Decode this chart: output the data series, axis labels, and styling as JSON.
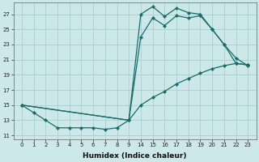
{
  "xlabel": "Humidex (Indice chaleur)",
  "bg_color": "#cce8e8",
  "line_color": "#1a6b6b",
  "grid_color": "#aacfcf",
  "xtick_labels": [
    "0",
    "1",
    "2",
    "3",
    "4",
    "5",
    "6",
    "7",
    "8",
    "9",
    "14",
    "15",
    "16",
    "17",
    "18",
    "19",
    "20",
    "21",
    "22",
    "23"
  ],
  "ytick_labels": [
    "11",
    "13",
    "15",
    "17",
    "19",
    "21",
    "23",
    "25",
    "27"
  ],
  "ytick_vals": [
    11,
    13,
    15,
    17,
    19,
    21,
    23,
    25,
    27
  ],
  "ylim": [
    10.5,
    28.5
  ],
  "line1_xidx": [
    0,
    1,
    2,
    3,
    4,
    5,
    6,
    7,
    8,
    9,
    10,
    11,
    12,
    13,
    14,
    15,
    16,
    17,
    18,
    19
  ],
  "line1_y": [
    15,
    14,
    13,
    12,
    12,
    12,
    12,
    11.8,
    12,
    13,
    27,
    28,
    26.7,
    27.8,
    27.2,
    27,
    25,
    23,
    21.2,
    20.2
  ],
  "line2_xidx": [
    0,
    9,
    10,
    11,
    12,
    13,
    14,
    15,
    16,
    17,
    18,
    19
  ],
  "line2_y": [
    15,
    13,
    24,
    26.5,
    25.5,
    26.8,
    26.5,
    26.8,
    25,
    23,
    20.5,
    20.3
  ],
  "line3_xidx": [
    0,
    9,
    10,
    11,
    12,
    13,
    14,
    15,
    16,
    17,
    18,
    19
  ],
  "line3_y": [
    15,
    13,
    15,
    16,
    16.8,
    17.8,
    18.5,
    19.2,
    19.8,
    20.2,
    20.5,
    20.3
  ]
}
